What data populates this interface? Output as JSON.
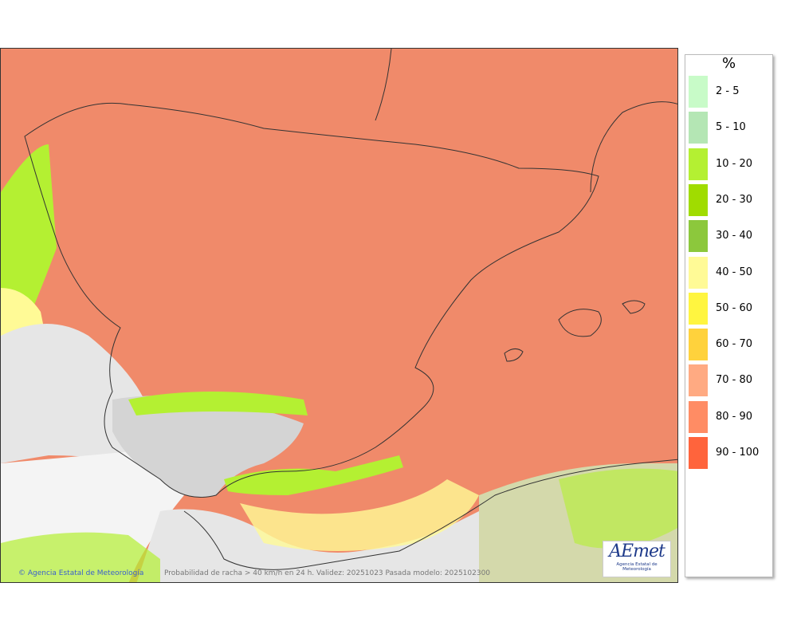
{
  "map": {
    "credit": "Agencia Estatal de Meteorología",
    "caption": "Probabilidad de racha > 40 km/h en 24 h. Validez: 20251023 Pasada modelo: 2025102300",
    "logo_text": "AEmet",
    "logo_subtext": "Agencia Estatal de Meteorología",
    "colors": {
      "land_high": "#f08a6a",
      "low_prob": "#e6e6e6",
      "coastline": "#333333"
    }
  },
  "legend": {
    "title": "%",
    "items": [
      {
        "label": "2 - 5",
        "color": "#c8fbc8"
      },
      {
        "label": "5 - 10",
        "color": "#b4e6b4"
      },
      {
        "label": "10 - 20",
        "color": "#b4f032"
      },
      {
        "label": "20 - 30",
        "color": "#a0dc00"
      },
      {
        "label": "30 - 40",
        "color": "#8cc83c"
      },
      {
        "label": "40 - 50",
        "color": "#fffa96"
      },
      {
        "label": "50 - 60",
        "color": "#fff540"
      },
      {
        "label": "60 - 70",
        "color": "#ffd23c"
      },
      {
        "label": "70 - 80",
        "color": "#ffaa82"
      },
      {
        "label": "80 - 90",
        "color": "#ff8c64"
      },
      {
        "label": "90 - 100",
        "color": "#ff643c"
      }
    ]
  }
}
